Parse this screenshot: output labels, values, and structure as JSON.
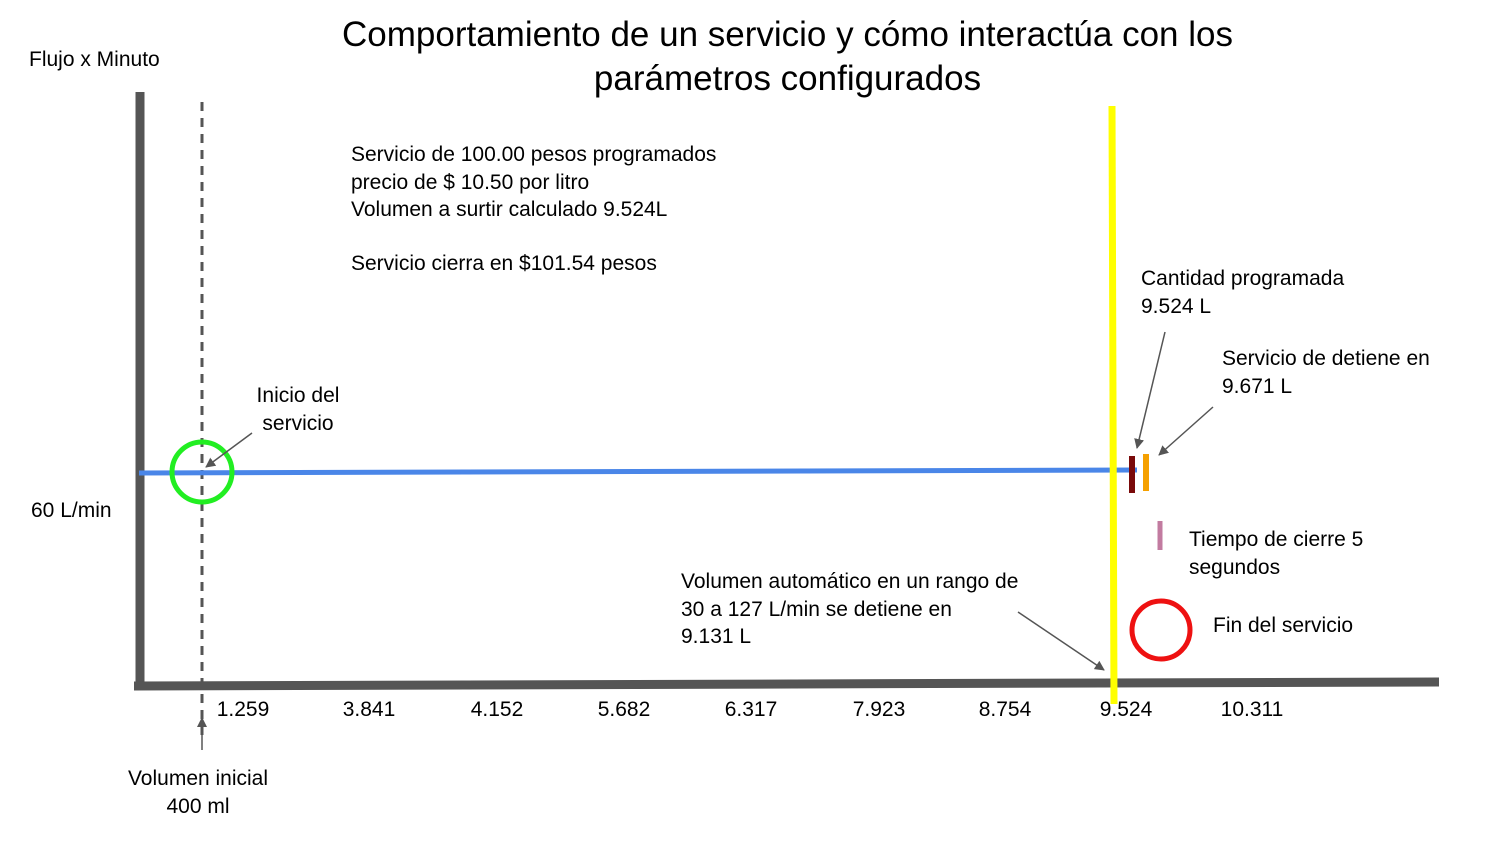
{
  "title_lines": [
    "Comportamiento de un servicio y cómo interactúa con los",
    "parámetros configurados"
  ],
  "y_axis_label": "Flujo x Minuto",
  "flow_label": "60 L/min",
  "x_ticks": [
    "1.259",
    "3.841",
    "4.152",
    "5.682",
    "6.317",
    "7.923",
    "8.754",
    "9.524",
    "10.311"
  ],
  "info_lines": [
    "Servicio de 100.00 pesos programados",
    "precio de $ 10.50 por litro",
    "Volumen a surtir calculado 9.524L"
  ],
  "info_close": "Servicio cierra en $101.54 pesos",
  "start_label": [
    "Inicio del",
    "servicio"
  ],
  "initial_volume_label": [
    "Volumen inicial",
    "400 ml"
  ],
  "auto_volume_label": [
    "Volumen automático en un rango de",
    "30 a 127 L/min se detiene en",
    "9.131 L"
  ],
  "programmed_label": [
    "Cantidad programada",
    "9.524 L"
  ],
  "stop_label": [
    "Servicio de detiene en",
    "9.671 L"
  ],
  "close_time_label": [
    "Tiempo de cierre 5",
    "segundos"
  ],
  "end_label": "Fin del servicio",
  "colors": {
    "axis": "#555555",
    "flow_line": "#4a86e8",
    "start_circle": "#22ee22",
    "end_circle": "#ee1111",
    "auto_stop_line": "#ffff00",
    "programmed_marker": "#7a0a0a",
    "stop_marker": "#f5a000",
    "close_marker": "#c27ba0"
  }
}
